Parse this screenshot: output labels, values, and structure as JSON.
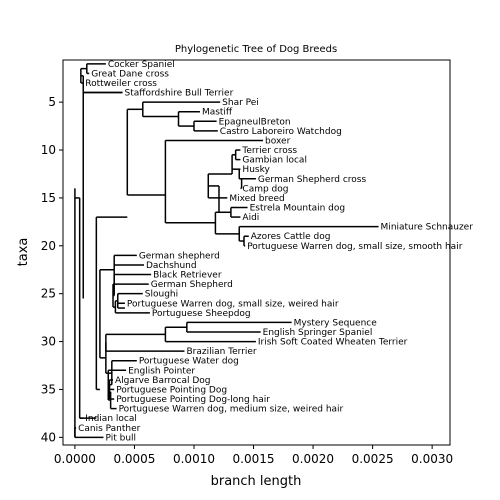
{
  "chart_data": {
    "type": "dendrogram",
    "title": "Phylogenetic Tree of Dog Breeds",
    "xlabel": "branch length",
    "ylabel": "taxa",
    "xlim": [
      -0.0001,
      0.00315
    ],
    "ylim": [
      40.8,
      0.6
    ],
    "xticks": [
      "0.0000",
      "0.0005",
      "0.0010",
      "0.0015",
      "0.0020",
      "0.0025",
      "0.0030"
    ],
    "xtick_values": [
      0,
      0.0005,
      0.001,
      0.0015,
      0.002,
      0.0025,
      0.003
    ],
    "yticks": [
      "5",
      "10",
      "15",
      "20",
      "25",
      "30",
      "35",
      "40"
    ],
    "ytick_values": [
      5,
      10,
      15,
      20,
      25,
      30,
      35,
      40
    ],
    "grid": false,
    "leaves": [
      {
        "name": "Cocker Spaniel",
        "x": 0.00026,
        "y": 1
      },
      {
        "name": "Great Dane cross",
        "x": 0.00012,
        "y": 2
      },
      {
        "name": "Rottweiler cross",
        "x": 7e-05,
        "y": 3
      },
      {
        "name": "Staffordshire Bull Terrier",
        "x": 0.0004,
        "y": 4
      },
      {
        "name": "Shar Pei",
        "x": 0.00122,
        "y": 5
      },
      {
        "name": "Mastiff",
        "x": 0.00105,
        "y": 6
      },
      {
        "name": "EpagneulBreton",
        "x": 0.00119,
        "y": 7
      },
      {
        "name": "Castro Laboreiro Watchdog",
        "x": 0.0012,
        "y": 8
      },
      {
        "name": "boxer",
        "x": 0.00158,
        "y": 9
      },
      {
        "name": "Terrier cross",
        "x": 0.00139,
        "y": 10
      },
      {
        "name": "Gambian local",
        "x": 0.00139,
        "y": 11
      },
      {
        "name": "Husky",
        "x": 0.00139,
        "y": 12
      },
      {
        "name": "German Shepherd cross",
        "x": 0.00152,
        "y": 13
      },
      {
        "name": "Camp dog",
        "x": 0.00139,
        "y": 14
      },
      {
        "name": "Mixed breed",
        "x": 0.00128,
        "y": 15
      },
      {
        "name": "Estrela Mountain dog",
        "x": 0.00145,
        "y": 16
      },
      {
        "name": "Aidi",
        "x": 0.00139,
        "y": 17
      },
      {
        "name": "Miniature Schnauzer",
        "x": 0.00255,
        "y": 18
      },
      {
        "name": "Azores Cattle dog",
        "x": 0.00146,
        "y": 19
      },
      {
        "name": "Portuguese Warren dog, small size, smooth hair",
        "x": 0.00143,
        "y": 20
      },
      {
        "name": "German shepherd",
        "x": 0.00052,
        "y": 21
      },
      {
        "name": "Dachshund",
        "x": 0.00058,
        "y": 22
      },
      {
        "name": "Black Retriever",
        "x": 0.00064,
        "y": 23
      },
      {
        "name": "German Shepherd",
        "x": 0.00062,
        "y": 24
      },
      {
        "name": "Sloughi",
        "x": 0.00057,
        "y": 25
      },
      {
        "name": "Portuguese Warren dog, small size, weired hair",
        "x": 0.00042,
        "y": 26
      },
      {
        "name": "Portuguese Sheepdog",
        "x": 0.00063,
        "y": 27
      },
      {
        "name": "Mystery Sequence",
        "x": 0.00182,
        "y": 28
      },
      {
        "name": "English Springer Spaniel",
        "x": 0.00156,
        "y": 29
      },
      {
        "name": "Irish Soft Coated Wheaten Terrier",
        "x": 0.00152,
        "y": 30
      },
      {
        "name": "Brazilian Terrier",
        "x": 0.00092,
        "y": 31
      },
      {
        "name": "Portuguese Water dog",
        "x": 0.00052,
        "y": 32
      },
      {
        "name": "English Pointer",
        "x": 0.00043,
        "y": 33
      },
      {
        "name": "Algarve Barrocal Dog",
        "x": 0.00032,
        "y": 34
      },
      {
        "name": "Portuguese Pointing Dog",
        "x": 0.00033,
        "y": 35
      },
      {
        "name": "Portuguese Pointing Dog-long hair",
        "x": 0.00033,
        "y": 36
      },
      {
        "name": "Portuguese Warren dog, medium size, weired hair",
        "x": 0.00035,
        "y": 37
      },
      {
        "name": "Indian local",
        "x": 7e-05,
        "y": 38
      },
      {
        "name": "Canis Panther",
        "x": 1e-05,
        "y": 39
      },
      {
        "name": "Pit bull",
        "x": 0.00024,
        "y": 40
      }
    ],
    "branches": [
      {
        "x": 0.0001,
        "y1": 1,
        "y2": 2
      },
      {
        "x": 5e-05,
        "y1": 1.5,
        "y2": 3
      },
      {
        "x": 7e-05,
        "y1": 2.25,
        "y2": 25.5
      },
      {
        "x": 0.00057,
        "y1": 5,
        "y2": 6.5
      },
      {
        "x": 0.00087,
        "y1": 6,
        "y2": 7.5
      },
      {
        "x": 0.001,
        "y1": 7,
        "y2": 8
      },
      {
        "x": 0.00044,
        "y1": 5.75,
        "y2": 14.7
      },
      {
        "x": 0.00135,
        "y1": 10,
        "y2": 11
      },
      {
        "x": 0.00132,
        "y1": 10.5,
        "y2": 12.5
      },
      {
        "x": 0.00138,
        "y1": 12,
        "y2": 13
      },
      {
        "x": 0.0014,
        "y1": 13,
        "y2": 14
      },
      {
        "x": 0.00112,
        "y1": 12.5,
        "y2": 15
      },
      {
        "x": 0.00131,
        "y1": 16,
        "y2": 17
      },
      {
        "x": 0.00121,
        "y1": 13.75,
        "y2": 16.5
      },
      {
        "x": 0.00138,
        "y1": 18,
        "y2": 19.5
      },
      {
        "x": 0.00142,
        "y1": 19,
        "y2": 20
      },
      {
        "x": 0.00118,
        "y1": 16.5,
        "y2": 18.75
      },
      {
        "x": 0.00076,
        "y1": 9,
        "y2": 17.6
      },
      {
        "x": 0.00036,
        "y1": 25,
        "y2": 26.5
      },
      {
        "x": 0.00034,
        "y1": 25.75,
        "y2": 27
      },
      {
        "x": 0.00032,
        "y1": 24,
        "y2": 26.4
      },
      {
        "x": 0.00033,
        "y1": 23,
        "y2": 25.2
      },
      {
        "x": 0.00033,
        "y1": 21,
        "y2": 24.1
      },
      {
        "x": 0.00094,
        "y1": 28,
        "y2": 29
      },
      {
        "x": 0.00076,
        "y1": 28.5,
        "y2": 30
      },
      {
        "x": 0.00026,
        "y1": 29.25,
        "y2": 31
      },
      {
        "x": 0.00029,
        "y1": 34,
        "y2": 35
      },
      {
        "x": 0.00029,
        "y1": 34.5,
        "y2": 36
      },
      {
        "x": 0.0003,
        "y1": 35.25,
        "y2": 37
      },
      {
        "x": 0.00028,
        "y1": 33,
        "y2": 36.1
      },
      {
        "x": 0.00031,
        "y1": 32,
        "y2": 34.5
      },
      {
        "x": 0.00026,
        "y1": 30.1,
        "y2": 33.3
      },
      {
        "x": 0.00021,
        "y1": 22.5,
        "y2": 31.7
      },
      {
        "x": 0.00018,
        "y1": 17,
        "y2": 35
      },
      {
        "x": 4e-05,
        "y1": 15,
        "y2": 38
      },
      {
        "x": 0.0,
        "y1": 14,
        "y2": 40
      },
      {
        "x": 0.0,
        "y1": 39,
        "y2": 40
      }
    ],
    "stems": [
      {
        "y": 1.5,
        "x1": 5e-05,
        "x2": 0.0001
      },
      {
        "y": 2.25,
        "x1": 7e-05,
        "x2": 5e-05
      },
      {
        "y": 6.5,
        "x1": 0.00057,
        "x2": 0.00087
      },
      {
        "y": 7.5,
        "x1": 0.00087,
        "x2": 0.001
      },
      {
        "y": 5.75,
        "x1": 0.00044,
        "x2": 0.00057
      },
      {
        "y": 10.5,
        "x1": 0.00132,
        "x2": 0.00135
      },
      {
        "y": 13,
        "x1": 0.00138,
        "x2": 0.0014
      },
      {
        "y": 12.5,
        "x1": 0.00112,
        "x2": 0.00132
      },
      {
        "y": 13.75,
        "x1": 0.00121,
        "x2": 0.00112
      },
      {
        "y": 16.5,
        "x1": 0.00121,
        "x2": 0.00131
      },
      {
        "y": 19.5,
        "x1": 0.00138,
        "x2": 0.00142
      },
      {
        "y": 18.75,
        "x1": 0.00118,
        "x2": 0.00138
      },
      {
        "y": 16.5,
        "x1": 0.00118,
        "x2": 0.00121
      },
      {
        "y": 17.6,
        "x1": 0.00076,
        "x2": 0.00118
      },
      {
        "y": 14.7,
        "x1": 0.00044,
        "x2": 0.00076
      },
      {
        "y": 4,
        "x1": 7e-05,
        "x2": 0.0004
      },
      {
        "y": 25.5,
        "x1": 7e-05,
        "x2": 7e-05
      },
      {
        "y": 26.5,
        "x1": 0.00036,
        "x2": 0.00042
      },
      {
        "y": 25.75,
        "x1": 0.00034,
        "x2": 0.00036
      },
      {
        "y": 26.4,
        "x1": 0.00032,
        "x2": 0.00034
      },
      {
        "y": 25.2,
        "x1": 0.00033,
        "x2": 0.00032
      },
      {
        "y": 24.1,
        "x1": 0.00033,
        "x2": 0.00033
      },
      {
        "y": 22.5,
        "x1": 0.00021,
        "x2": 0.00033
      },
      {
        "y": 28.5,
        "x1": 0.00076,
        "x2": 0.00094
      },
      {
        "y": 29.25,
        "x1": 0.00026,
        "x2": 0.00076
      },
      {
        "y": 34.5,
        "x1": 0.00029,
        "x2": 0.00029
      },
      {
        "y": 35.25,
        "x1": 0.00029,
        "x2": 0.0003
      },
      {
        "y": 36.1,
        "x1": 0.00028,
        "x2": 0.0003
      },
      {
        "y": 34.5,
        "x1": 0.00031,
        "x2": 0.00028
      },
      {
        "y": 33.3,
        "x1": 0.00026,
        "x2": 0.00031
      },
      {
        "y": 30.1,
        "x1": 0.00026,
        "x2": 0.00026
      },
      {
        "y": 31.7,
        "x1": 0.00021,
        "x2": 0.00026
      },
      {
        "y": 35,
        "x1": 0.00018,
        "x2": 0.00021
      },
      {
        "y": 17,
        "x1": 0.00018,
        "x2": 0.00044
      },
      {
        "y": 38,
        "x1": 4e-05,
        "x2": 0.00018
      },
      {
        "y": 15,
        "x1": 0.0,
        "x2": 4e-05
      }
    ]
  }
}
